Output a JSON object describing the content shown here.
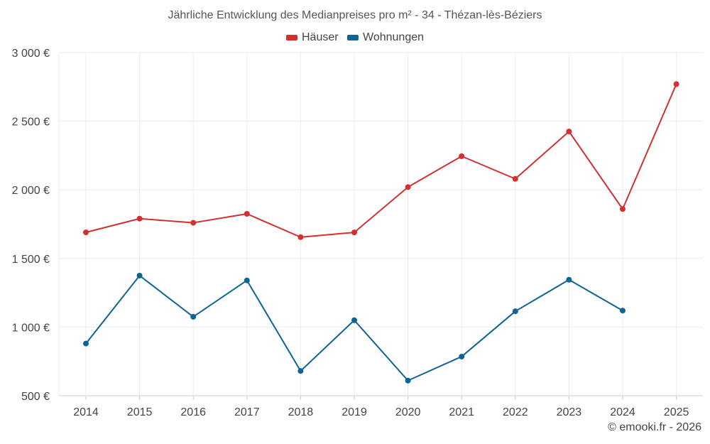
{
  "chart_data": {
    "type": "line",
    "title": "Jährliche Entwicklung des Medianpreises pro m² - 34 - Thézan-lès-Béziers",
    "categories": [
      "2014",
      "2015",
      "2016",
      "2017",
      "2018",
      "2019",
      "2020",
      "2021",
      "2022",
      "2023",
      "2024",
      "2025"
    ],
    "series": [
      {
        "name": "Häuser",
        "color": "#d32f2f",
        "values": [
          1690,
          1790,
          1760,
          1825,
          1655,
          1690,
          2020,
          2245,
          2080,
          2425,
          1860,
          2770
        ]
      },
      {
        "name": "Wohnungen",
        "color": "#0d6496",
        "values": [
          880,
          1375,
          1075,
          1340,
          680,
          1050,
          610,
          785,
          1115,
          1345,
          1120,
          null
        ]
      }
    ],
    "ylim": [
      500,
      3000
    ],
    "yticks": [
      500,
      1000,
      1500,
      2000,
      2500,
      3000
    ],
    "ytick_labels": [
      "500 €",
      "1 000 €",
      "1 500 €",
      "2 000 €",
      "2 500 €",
      "3 000 €"
    ],
    "grid": true,
    "legend_position": "top-center",
    "xlabel": "",
    "ylabel": ""
  },
  "credit": "© emooki.fr - 2026"
}
